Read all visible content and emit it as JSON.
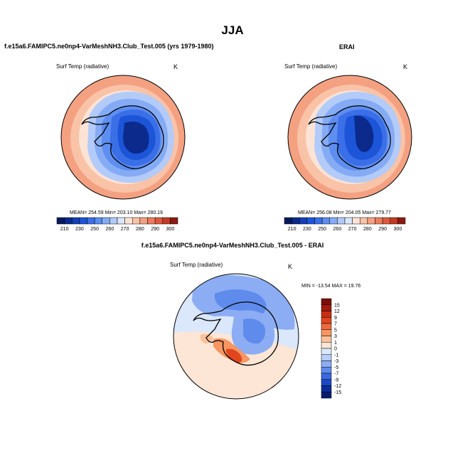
{
  "page": {
    "title": "JJA"
  },
  "panels": [
    {
      "title": "f.e15a6.FAMIPC5.ne0np4-VarMeshNH3.Club_Test.005 (yrs 1979-1980)",
      "variable": "Surf Temp (radiative)",
      "units": "K",
      "stats_text": "MEAN= 254.59  Min= 203.10  Max= 280.19"
    },
    {
      "title": "ERAI",
      "variable": "Surf Temp (radiative)",
      "units": "K",
      "stats_text": "MEAN= 256.08  Min= 204.05  Max= 279.77"
    },
    {
      "title": "f.e15a6.FAMIPC5.ne0np4-VarMeshNH3.Club_Test.005 - ERAI",
      "variable": "Surf Temp (radiative)",
      "units": "K",
      "stats_text": "MIN = -13.54  MAX =  19.76"
    }
  ],
  "chart_data": [
    {
      "type": "heatmap",
      "projection": "south-polar-stereographic",
      "title": "f.e15a6.FAMIPC5.ne0np4-VarMeshNH3.Club_Test.005 (yrs 1979-1980)",
      "variable": "Surf Temp (radiative)",
      "units": "K",
      "stats": {
        "mean": 254.59,
        "min": 203.1,
        "max": 280.19
      },
      "colorbar": {
        "levels": [
          210,
          230,
          250,
          260,
          270,
          280,
          290,
          300
        ],
        "colors": [
          "#061a5e",
          "#0b2a8c",
          "#1340b8",
          "#1d55d8",
          "#3a6fe8",
          "#5d8ef0",
          "#86abf5",
          "#b3cbf8",
          "#dbe6fb",
          "#fbe3d6",
          "#f9c3a8",
          "#f4a182",
          "#ec7d5d",
          "#de5a3d",
          "#c33a25",
          "#8c1a10"
        ]
      }
    },
    {
      "type": "heatmap",
      "projection": "south-polar-stereographic",
      "title": "ERAI",
      "variable": "Surf Temp (radiative)",
      "units": "K",
      "stats": {
        "mean": 256.08,
        "min": 204.05,
        "max": 279.77
      },
      "colorbar": {
        "levels": [
          210,
          230,
          250,
          260,
          270,
          280,
          290,
          300
        ],
        "colors": [
          "#061a5e",
          "#0b2a8c",
          "#1340b8",
          "#1d55d8",
          "#3a6fe8",
          "#5d8ef0",
          "#86abf5",
          "#b3cbf8",
          "#dbe6fb",
          "#fbe3d6",
          "#f9c3a8",
          "#f4a182",
          "#ec7d5d",
          "#de5a3d",
          "#c33a25",
          "#8c1a10"
        ]
      }
    },
    {
      "type": "heatmap",
      "projection": "south-polar-stereographic",
      "title": "f.e15a6.FAMIPC5.ne0np4-VarMeshNH3.Club_Test.005 - ERAI",
      "variable": "Surf Temp (radiative)",
      "units": "K",
      "stats": {
        "min": -13.54,
        "max": 19.76
      },
      "colorbar": {
        "levels": [
          15,
          12,
          9,
          7,
          5,
          3,
          1,
          0,
          -1,
          -3,
          -5,
          -7,
          -9,
          -12,
          -15
        ],
        "colors": [
          "#7a1008",
          "#a31a0e",
          "#c92d14",
          "#e2461f",
          "#ef6a3c",
          "#f79563",
          "#fbc19c",
          "#fde6d6",
          "#dbe7fb",
          "#b6cdf8",
          "#8cadf3",
          "#5f8bec",
          "#3a68e2",
          "#1c48c8",
          "#0b2d9a",
          "#061d6e"
        ]
      }
    }
  ]
}
